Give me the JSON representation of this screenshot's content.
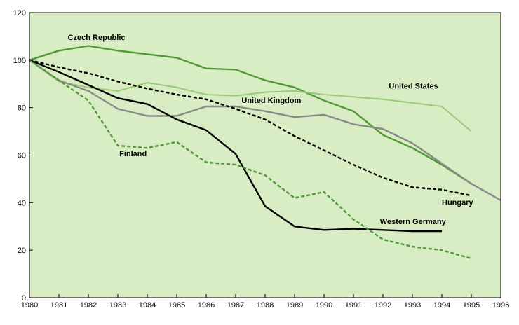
{
  "chart_data": {
    "type": "line",
    "title": "",
    "xlabel": "",
    "ylabel": "",
    "xlim": [
      1980,
      1996
    ],
    "ylim": [
      0,
      120
    ],
    "x_ticks": [
      "1980",
      "1981",
      "1982",
      "1983",
      "1984",
      "1985",
      "1986",
      "1987",
      "1988",
      "1989",
      "1990",
      "1991",
      "1992",
      "1993",
      "1994",
      "1995",
      "1996"
    ],
    "y_ticks": [
      "0",
      "20",
      "40",
      "60",
      "80",
      "100",
      "120"
    ],
    "grid": false,
    "legend": "none (series labeled inline)",
    "background_color": "#d9edc5",
    "series": [
      {
        "name": "Czech Republic",
        "color": "#4f9a35",
        "dash": false,
        "x": [
          1980,
          1981,
          1982,
          1983,
          1984,
          1985,
          1986,
          1987,
          1988,
          1989,
          1990,
          1991,
          1992,
          1993,
          1994,
          1995
        ],
        "y": [
          100,
          104,
          106,
          104,
          102.5,
          101,
          96.5,
          96,
          91.5,
          88.5,
          83,
          78.5,
          68.5,
          63,
          56,
          48
        ]
      },
      {
        "name": "United States",
        "color": "#9acb78",
        "dash": false,
        "x": [
          1980,
          1981,
          1982,
          1983,
          1984,
          1985,
          1986,
          1987,
          1988,
          1989,
          1990,
          1991,
          1992,
          1993,
          1994,
          1995
        ],
        "y": [
          100,
          91,
          88.5,
          87,
          90.5,
          88.5,
          85.5,
          85,
          86.5,
          87,
          85.5,
          84.5,
          83.5,
          82,
          80.5,
          70
        ]
      },
      {
        "name": "United Kingdom",
        "color": "#8a8a8a",
        "dash": false,
        "x": [
          1980,
          1981,
          1982,
          1983,
          1984,
          1985,
          1986,
          1987,
          1988,
          1989,
          1990,
          1991,
          1992,
          1993,
          1994,
          1995,
          1996
        ],
        "y": [
          100,
          91.5,
          87,
          79.5,
          76.5,
          76.5,
          80.5,
          80.5,
          78.5,
          76,
          77,
          73,
          71,
          65,
          56.5,
          48,
          41
        ]
      },
      {
        "name": "Hungary",
        "color": "#000000",
        "dash": true,
        "x": [
          1980,
          1981,
          1982,
          1983,
          1984,
          1985,
          1986,
          1987,
          1988,
          1989,
          1990,
          1991,
          1992,
          1993,
          1994,
          1995
        ],
        "y": [
          100,
          97,
          94.5,
          91,
          88,
          85.5,
          83.5,
          79.5,
          75,
          68,
          62,
          56,
          50.5,
          46.5,
          45.5,
          43
        ]
      },
      {
        "name": "Western Germany",
        "color": "#000000",
        "dash": false,
        "x": [
          1980,
          1981,
          1982,
          1983,
          1984,
          1985,
          1986,
          1987,
          1988,
          1989,
          1990,
          1991,
          1992,
          1993,
          1994
        ],
        "y": [
          100,
          95,
          89.5,
          84,
          81.5,
          75,
          70.5,
          60.5,
          38.5,
          30,
          28.5,
          29,
          28.5,
          28,
          28
        ]
      },
      {
        "name": "Finland",
        "color": "#4f9a35",
        "dash": true,
        "x": [
          1980,
          1981,
          1982,
          1983,
          1984,
          1985,
          1986,
          1987,
          1988,
          1989,
          1990,
          1991,
          1992,
          1993,
          1994,
          1995
        ],
        "y": [
          100,
          91.5,
          83,
          64,
          63,
          65.5,
          57,
          56,
          51.5,
          42,
          44.5,
          33,
          24.5,
          21.5,
          20,
          16.5
        ]
      }
    ],
    "series_labels": [
      {
        "text": "Czech Republic",
        "anchor_x": 1981.3,
        "anchor_y": 108.5
      },
      {
        "text": "United States",
        "anchor_x": 1992.2,
        "anchor_y": 88
      },
      {
        "text": "United Kingdom",
        "anchor_x": 1987.2,
        "anchor_y": 82
      },
      {
        "text": "Finland",
        "anchor_x": 1983.05,
        "anchor_y": 59.5
      },
      {
        "text": "Hungary",
        "anchor_x": 1994.0,
        "anchor_y": 39
      },
      {
        "text": "Western Germany",
        "anchor_x": 1991.9,
        "anchor_y": 31
      }
    ]
  }
}
